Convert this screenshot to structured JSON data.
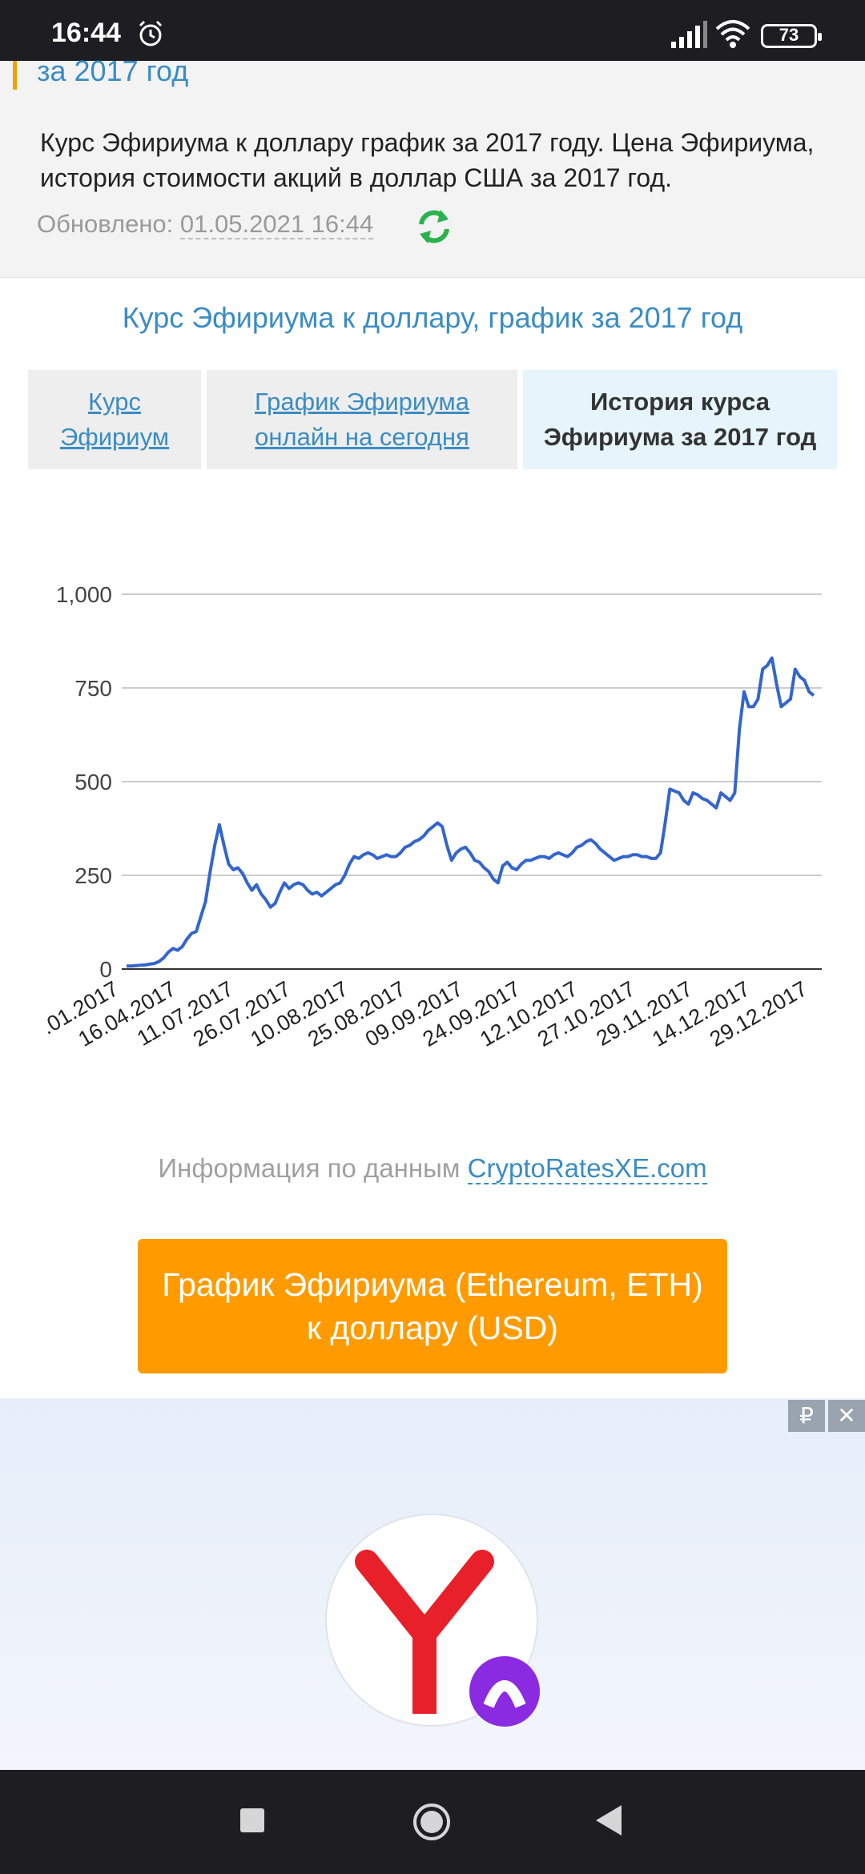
{
  "status_bar": {
    "time": "16:44",
    "battery": "73"
  },
  "header": {
    "title_fragment": "за 2017 год",
    "description": "Курс Эфириума к доллару график за 2017 году. Цена Эфириума, история стоимости акций в доллар США за 2017 год.",
    "updated_label": "Обновлено: ",
    "updated_value": "01.05.2021 16:44"
  },
  "chart_heading": "Курс Эфириума к доллару, график за 2017 год",
  "tabs": [
    {
      "line1": "Курс",
      "line2": "Эфириум"
    },
    {
      "line1": "График Эфириума",
      "line2": "онлайн на сегодня"
    },
    {
      "line1": "История курса",
      "line2": "Эфириума за 2017 год"
    }
  ],
  "chart_data": {
    "type": "line",
    "ylim": [
      0,
      1000
    ],
    "yticks": [
      "0",
      "250",
      "500",
      "750",
      "1,000"
    ],
    "xtick_labels": [
      ".01.2017",
      "16.04.2017",
      "11.07.2017",
      "26.07.2017",
      "10.08.2017",
      "25.08.2017",
      "09.09.2017",
      "24.09.2017",
      "12.10.2017",
      "27.10.2017",
      "29.11.2017",
      "14.12.2017",
      "29.12.2017"
    ],
    "line_color": "#3366cc",
    "series": [
      {
        "values": [
          8,
          8,
          9,
          10,
          11,
          13,
          15,
          20,
          30,
          45,
          55,
          50,
          60,
          80,
          95,
          100,
          140,
          180,
          260,
          330,
          385,
          330,
          280,
          265,
          270,
          255,
          230,
          210,
          225,
          200,
          185,
          165,
          175,
          205,
          230,
          215,
          225,
          230,
          225,
          210,
          200,
          205,
          195,
          205,
          215,
          225,
          230,
          250,
          280,
          300,
          295,
          305,
          310,
          305,
          295,
          300,
          305,
          300,
          300,
          310,
          325,
          330,
          340,
          345,
          355,
          370,
          380,
          390,
          380,
          330,
          290,
          310,
          320,
          325,
          310,
          290,
          285,
          270,
          260,
          240,
          230,
          275,
          285,
          270,
          265,
          280,
          290,
          290,
          295,
          300,
          300,
          295,
          305,
          310,
          305,
          300,
          310,
          325,
          330,
          340,
          345,
          335,
          320,
          310,
          300,
          290,
          295,
          300,
          300,
          305,
          305,
          300,
          300,
          295,
          295,
          310,
          390,
          480,
          475,
          470,
          450,
          440,
          470,
          465,
          455,
          450,
          440,
          430,
          470,
          460,
          450,
          470,
          640,
          740,
          700,
          700,
          720,
          800,
          810,
          830,
          760,
          700,
          710,
          720,
          800,
          780,
          770,
          740,
          730
        ]
      }
    ]
  },
  "source": {
    "text": "Информация по данным ",
    "link": "CryptoRatesXE.com"
  },
  "cta_button": {
    "line1": "График Эфириума (Ethereum, ETH)",
    "line2": "к доллару (USD)"
  },
  "ad": {
    "currency_label": "₽",
    "close_label": "✕"
  },
  "icons": {
    "alarm": "alarm-icon",
    "signal": "signal-icon",
    "wifi": "wifi-icon",
    "refresh": "refresh-icon",
    "close": "close-icon",
    "logo": "yandex-logo-icon"
  },
  "colors": {
    "accent": "#3a8cc4",
    "cta": "#ff9b00",
    "refresh": "#2bb24c"
  }
}
